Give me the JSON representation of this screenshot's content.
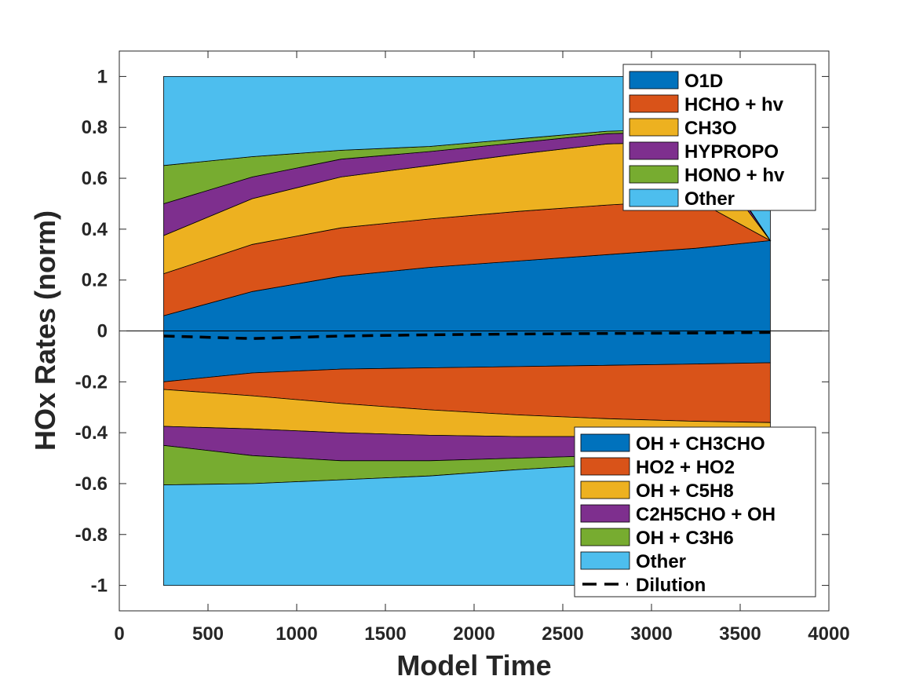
{
  "chart_data": {
    "type": "area",
    "xlabel": "Model Time",
    "ylabel": "HOx Rates (norm)",
    "xlim": [
      0,
      4000
    ],
    "ylim": [
      -1.1,
      1.1
    ],
    "xticks": [
      "0",
      "500",
      "1000",
      "1500",
      "2000",
      "2500",
      "3000",
      "3500",
      "4000"
    ],
    "yticks": [
      "-1",
      "-0.8",
      "-0.6",
      "-0.4",
      "-0.2",
      "0",
      "0.2",
      "0.4",
      "0.6",
      "0.8",
      "1"
    ],
    "x": [
      250,
      750,
      1250,
      1750,
      2250,
      2750,
      3250,
      3670
    ],
    "grid": false,
    "colors": [
      "#0072BD",
      "#D95319",
      "#EDB120",
      "#7E2F8E",
      "#77AC30",
      "#4DBEEE"
    ],
    "production": {
      "legend_position": "top-right",
      "series": [
        {
          "name": "O1D",
          "values": [
            0.06,
            0.155,
            0.215,
            0.25,
            0.275,
            0.3,
            0.325,
            0.355
          ]
        },
        {
          "name": "HCHO + hv",
          "values": [
            0.165,
            0.185,
            0.19,
            0.19,
            0.195,
            0.195,
            0.19,
            0.0
          ]
        },
        {
          "name": "CH3O",
          "values": [
            0.15,
            0.18,
            0.2,
            0.21,
            0.225,
            0.24,
            0.23,
            0.0
          ]
        },
        {
          "name": "HYPROPO",
          "values": [
            0.125,
            0.085,
            0.07,
            0.055,
            0.045,
            0.04,
            0.04,
            0.0
          ]
        },
        {
          "name": "HONO + hv",
          "values": [
            0.15,
            0.08,
            0.035,
            0.02,
            0.015,
            0.01,
            0.01,
            0.0
          ]
        },
        {
          "name": "Other",
          "values": [
            0.35,
            0.315,
            0.29,
            0.275,
            0.245,
            0.215,
            0.205,
            0.645
          ]
        }
      ]
    },
    "loss": {
      "legend_position": "bottom-right",
      "series": [
        {
          "name": "OH + CH3CHO",
          "values": [
            -0.2,
            -0.165,
            -0.15,
            -0.145,
            -0.14,
            -0.135,
            -0.13,
            -0.125
          ]
        },
        {
          "name": "HO2 + HO2",
          "values": [
            -0.03,
            -0.09,
            -0.135,
            -0.165,
            -0.19,
            -0.21,
            -0.225,
            -0.235
          ]
        },
        {
          "name": "OH + C5H8",
          "values": [
            -0.145,
            -0.13,
            -0.115,
            -0.1,
            -0.085,
            -0.07,
            -0.065,
            -0.06
          ]
        },
        {
          "name": "C2H5CHO + OH",
          "values": [
            -0.075,
            -0.105,
            -0.11,
            -0.1,
            -0.085,
            -0.075,
            -0.07,
            -0.065
          ]
        },
        {
          "name": "OH + C3H6",
          "values": [
            -0.155,
            -0.11,
            -0.075,
            -0.06,
            -0.045,
            -0.035,
            -0.03,
            -0.03
          ]
        },
        {
          "name": "Other",
          "values": [
            -0.395,
            -0.4,
            -0.415,
            -0.43,
            -0.455,
            -0.475,
            -0.48,
            -0.485
          ]
        }
      ]
    },
    "dilution": {
      "name": "Dilution",
      "values": [
        -0.02,
        -0.03,
        -0.02,
        -0.015,
        -0.012,
        -0.01,
        -0.008,
        -0.006
      ]
    }
  }
}
